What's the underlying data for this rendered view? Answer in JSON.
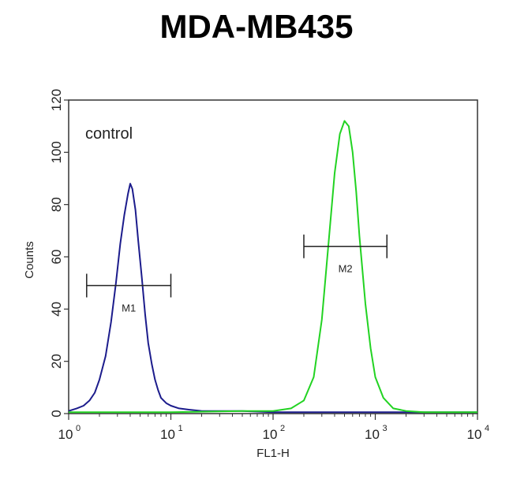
{
  "chart_data": {
    "type": "line",
    "title": "MDA-MB435",
    "xlabel": "FL1-H",
    "ylabel": "Counts",
    "xscale": "log",
    "xlim": [
      1,
      10000
    ],
    "ylim": [
      0,
      120
    ],
    "x_ticks": [
      {
        "value": 1,
        "base": "10",
        "exp": "0"
      },
      {
        "value": 10,
        "base": "10",
        "exp": "1"
      },
      {
        "value": 100,
        "base": "10",
        "exp": "2"
      },
      {
        "value": 1000,
        "base": "10",
        "exp": "3"
      },
      {
        "value": 10000,
        "base": "10",
        "exp": "4"
      }
    ],
    "y_ticks": [
      0,
      20,
      40,
      60,
      80,
      100,
      120
    ],
    "grid": false,
    "annotation": "control",
    "series": [
      {
        "color": "#1c1c8c",
        "x": [
          1,
          1.2,
          1.4,
          1.6,
          1.8,
          2.0,
          2.3,
          2.6,
          2.9,
          3.2,
          3.5,
          3.8,
          4.0,
          4.2,
          4.5,
          4.8,
          5.2,
          5.6,
          6.0,
          6.5,
          7.0,
          7.5,
          8.0,
          9.0,
          10,
          12,
          15,
          20,
          30,
          50,
          100,
          300,
          1000,
          3000,
          10000
        ],
        "y": [
          1,
          2,
          3,
          5,
          8,
          13,
          22,
          35,
          50,
          65,
          76,
          84,
          88,
          86,
          78,
          66,
          52,
          38,
          27,
          19,
          13,
          9,
          6,
          4,
          3,
          2,
          1.5,
          1,
          1,
          1,
          0.5,
          0.5,
          0.5,
          0.5,
          0.5
        ]
      },
      {
        "color": "#22d322",
        "x": [
          1,
          10,
          50,
          100,
          150,
          200,
          250,
          300,
          350,
          400,
          450,
          500,
          550,
          600,
          650,
          700,
          800,
          900,
          1000,
          1200,
          1500,
          2000,
          3000,
          10000
        ],
        "y": [
          0.5,
          0.5,
          1,
          1,
          2,
          5,
          14,
          36,
          66,
          92,
          107,
          112,
          110,
          100,
          85,
          68,
          42,
          25,
          14,
          6,
          2,
          1,
          0.5,
          0.5
        ]
      }
    ],
    "markers": [
      {
        "label": "M1",
        "x_start": 1.5,
        "x_end": 10,
        "y": 49
      },
      {
        "label": "M2",
        "x_start": 200,
        "x_end": 1300,
        "y": 64
      }
    ]
  }
}
